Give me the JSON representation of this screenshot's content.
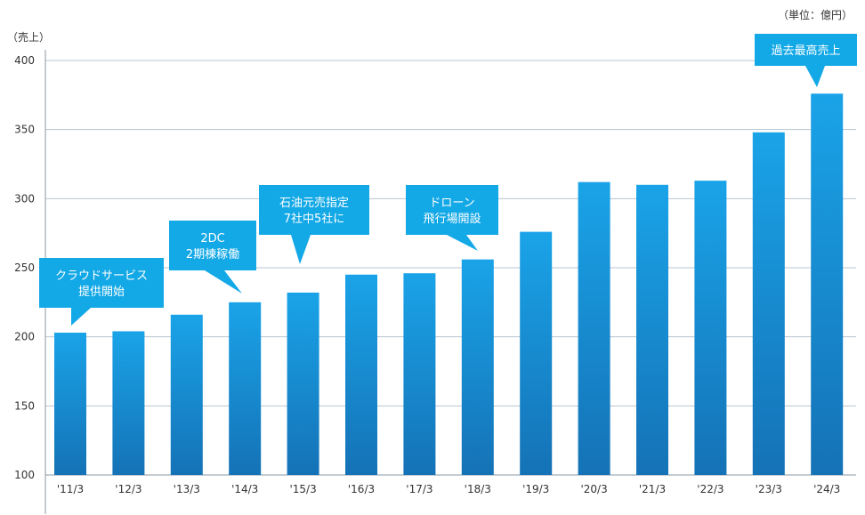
{
  "unit_label": "（単位：億円）",
  "y_axis_caption": "（売上）",
  "chart_data": {
    "type": "bar",
    "title": "",
    "xlabel": "",
    "ylabel": "売上",
    "categories": [
      "'11/3",
      "'12/3",
      "'13/3",
      "'14/3",
      "'15/3",
      "'16/3",
      "'17/3",
      "'18/3",
      "'19/3",
      "'20/3",
      "'21/3",
      "'22/3",
      "'23/3",
      "'24/3"
    ],
    "values": [
      203,
      204,
      216,
      225,
      232,
      245,
      246,
      256,
      276,
      312,
      310,
      313,
      348,
      376
    ],
    "ylim": [
      100,
      400
    ],
    "yticks": [
      100,
      150,
      200,
      250,
      300,
      350,
      400
    ],
    "grid": true,
    "bar_color_top": "#1aa3e8",
    "bar_color_bottom": "#1572b6",
    "annotation_color": "#13a8e6"
  },
  "annotations": [
    {
      "lines": [
        "クラウドサービス",
        "提供開始"
      ],
      "category_index": 0
    },
    {
      "lines": [
        "2DC",
        "2期棟稼働"
      ],
      "category_index": 3
    },
    {
      "lines": [
        "石油元売指定",
        "7社中5社に"
      ],
      "category_index": 4
    },
    {
      "lines": [
        "ドローン",
        "飛行場開設"
      ],
      "category_index": 7
    },
    {
      "lines": [
        "過去最高売上"
      ],
      "category_index": 13
    }
  ]
}
